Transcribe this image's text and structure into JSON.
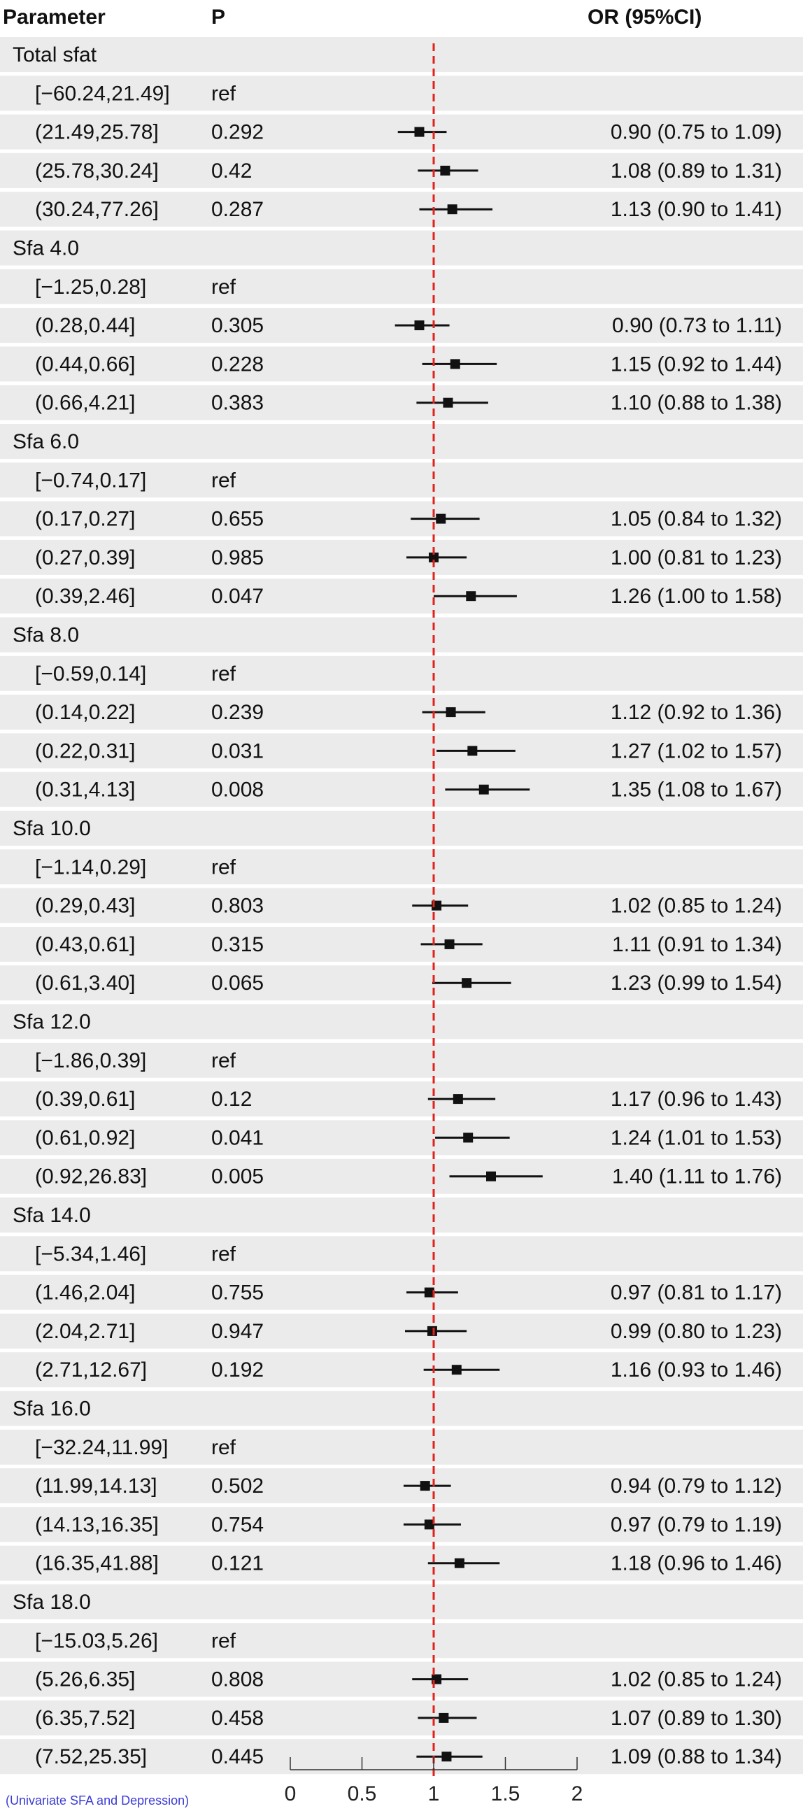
{
  "header": {
    "col_parameter": "Parameter",
    "col_p": "P",
    "col_or": "OR (95%CI)"
  },
  "caption": "(Univariate SFA and Depression)",
  "chart_data": {
    "type": "forest",
    "reference_line": 1,
    "xlim": [
      0,
      2
    ],
    "xticks": [
      0,
      0.5,
      1,
      1.5,
      2
    ],
    "tick_labels": [
      "0",
      "0.5",
      "1",
      "1.5",
      "2"
    ],
    "colors": {
      "band": "#ebebeb",
      "point": "#111111",
      "ref_line": "#e0221b",
      "caption": "#3b3bd6"
    },
    "groups": [
      {
        "name": "Total sfat",
        "rows": [
          {
            "level": "[−60.24,21.49]",
            "p": "ref",
            "or_text": ""
          },
          {
            "level": "(21.49,25.78]",
            "p": "0.292",
            "or": 0.9,
            "lo": 0.75,
            "hi": 1.09,
            "or_text": "0.90 (0.75 to 1.09)"
          },
          {
            "level": "(25.78,30.24]",
            "p": "0.42",
            "or": 1.08,
            "lo": 0.89,
            "hi": 1.31,
            "or_text": "1.08 (0.89 to 1.31)"
          },
          {
            "level": "(30.24,77.26]",
            "p": "0.287",
            "or": 1.13,
            "lo": 0.9,
            "hi": 1.41,
            "or_text": "1.13 (0.90 to 1.41)"
          }
        ]
      },
      {
        "name": "Sfa 4.0",
        "rows": [
          {
            "level": "[−1.25,0.28]",
            "p": "ref",
            "or_text": ""
          },
          {
            "level": "(0.28,0.44]",
            "p": "0.305",
            "or": 0.9,
            "lo": 0.73,
            "hi": 1.11,
            "or_text": "0.90 (0.73 to 1.11)"
          },
          {
            "level": "(0.44,0.66]",
            "p": "0.228",
            "or": 1.15,
            "lo": 0.92,
            "hi": 1.44,
            "or_text": "1.15 (0.92 to 1.44)"
          },
          {
            "level": "(0.66,4.21]",
            "p": "0.383",
            "or": 1.1,
            "lo": 0.88,
            "hi": 1.38,
            "or_text": "1.10 (0.88 to 1.38)"
          }
        ]
      },
      {
        "name": "Sfa 6.0",
        "rows": [
          {
            "level": "[−0.74,0.17]",
            "p": "ref",
            "or_text": ""
          },
          {
            "level": "(0.17,0.27]",
            "p": "0.655",
            "or": 1.05,
            "lo": 0.84,
            "hi": 1.32,
            "or_text": "1.05 (0.84 to 1.32)"
          },
          {
            "level": "(0.27,0.39]",
            "p": "0.985",
            "or": 1.0,
            "lo": 0.81,
            "hi": 1.23,
            "or_text": "1.00 (0.81 to 1.23)"
          },
          {
            "level": "(0.39,2.46]",
            "p": "0.047",
            "or": 1.26,
            "lo": 1.0,
            "hi": 1.58,
            "or_text": "1.26 (1.00 to 1.58)"
          }
        ]
      },
      {
        "name": "Sfa 8.0",
        "rows": [
          {
            "level": "[−0.59,0.14]",
            "p": "ref",
            "or_text": ""
          },
          {
            "level": "(0.14,0.22]",
            "p": "0.239",
            "or": 1.12,
            "lo": 0.92,
            "hi": 1.36,
            "or_text": "1.12 (0.92 to 1.36)"
          },
          {
            "level": "(0.22,0.31]",
            "p": "0.031",
            "or": 1.27,
            "lo": 1.02,
            "hi": 1.57,
            "or_text": "1.27 (1.02 to 1.57)"
          },
          {
            "level": "(0.31,4.13]",
            "p": "0.008",
            "or": 1.35,
            "lo": 1.08,
            "hi": 1.67,
            "or_text": "1.35 (1.08 to 1.67)"
          }
        ]
      },
      {
        "name": "Sfa 10.0",
        "rows": [
          {
            "level": "[−1.14,0.29]",
            "p": "ref",
            "or_text": ""
          },
          {
            "level": "(0.29,0.43]",
            "p": "0.803",
            "or": 1.02,
            "lo": 0.85,
            "hi": 1.24,
            "or_text": "1.02 (0.85 to 1.24)"
          },
          {
            "level": "(0.43,0.61]",
            "p": "0.315",
            "or": 1.11,
            "lo": 0.91,
            "hi": 1.34,
            "or_text": "1.11 (0.91 to 1.34)"
          },
          {
            "level": "(0.61,3.40]",
            "p": "0.065",
            "or": 1.23,
            "lo": 0.99,
            "hi": 1.54,
            "or_text": "1.23 (0.99 to 1.54)"
          }
        ]
      },
      {
        "name": "Sfa 12.0",
        "rows": [
          {
            "level": "[−1.86,0.39]",
            "p": "ref",
            "or_text": ""
          },
          {
            "level": "(0.39,0.61]",
            "p": "0.12",
            "or": 1.17,
            "lo": 0.96,
            "hi": 1.43,
            "or_text": "1.17 (0.96 to 1.43)"
          },
          {
            "level": "(0.61,0.92]",
            "p": "0.041",
            "or": 1.24,
            "lo": 1.01,
            "hi": 1.53,
            "or_text": "1.24 (1.01 to 1.53)"
          },
          {
            "level": "(0.92,26.83]",
            "p": "0.005",
            "or": 1.4,
            "lo": 1.11,
            "hi": 1.76,
            "or_text": "1.40 (1.11 to 1.76)"
          }
        ]
      },
      {
        "name": "Sfa 14.0",
        "rows": [
          {
            "level": "[−5.34,1.46]",
            "p": "ref",
            "or_text": ""
          },
          {
            "level": "(1.46,2.04]",
            "p": "0.755",
            "or": 0.97,
            "lo": 0.81,
            "hi": 1.17,
            "or_text": "0.97 (0.81 to 1.17)"
          },
          {
            "level": "(2.04,2.71]",
            "p": "0.947",
            "or": 0.99,
            "lo": 0.8,
            "hi": 1.23,
            "or_text": "0.99 (0.80 to 1.23)"
          },
          {
            "level": "(2.71,12.67]",
            "p": "0.192",
            "or": 1.16,
            "lo": 0.93,
            "hi": 1.46,
            "or_text": "1.16 (0.93 to 1.46)"
          }
        ]
      },
      {
        "name": "Sfa 16.0",
        "rows": [
          {
            "level": "[−32.24,11.99]",
            "p": "ref",
            "or_text": ""
          },
          {
            "level": "(11.99,14.13]",
            "p": "0.502",
            "or": 0.94,
            "lo": 0.79,
            "hi": 1.12,
            "or_text": "0.94 (0.79 to 1.12)"
          },
          {
            "level": "(14.13,16.35]",
            "p": "0.754",
            "or": 0.97,
            "lo": 0.79,
            "hi": 1.19,
            "or_text": "0.97 (0.79 to 1.19)"
          },
          {
            "level": "(16.35,41.88]",
            "p": "0.121",
            "or": 1.18,
            "lo": 0.96,
            "hi": 1.46,
            "or_text": "1.18 (0.96 to 1.46)"
          }
        ]
      },
      {
        "name": "Sfa 18.0",
        "rows": [
          {
            "level": "[−15.03,5.26]",
            "p": "ref",
            "or_text": ""
          },
          {
            "level": "(5.26,6.35]",
            "p": "0.808",
            "or": 1.02,
            "lo": 0.85,
            "hi": 1.24,
            "or_text": "1.02 (0.85 to 1.24)"
          },
          {
            "level": "(6.35,7.52]",
            "p": "0.458",
            "or": 1.07,
            "lo": 0.89,
            "hi": 1.3,
            "or_text": "1.07 (0.89 to 1.30)"
          },
          {
            "level": "(7.52,25.35]",
            "p": "0.445",
            "or": 1.09,
            "lo": 0.88,
            "hi": 1.34,
            "or_text": "1.09 (0.88 to 1.34)"
          }
        ]
      }
    ]
  }
}
